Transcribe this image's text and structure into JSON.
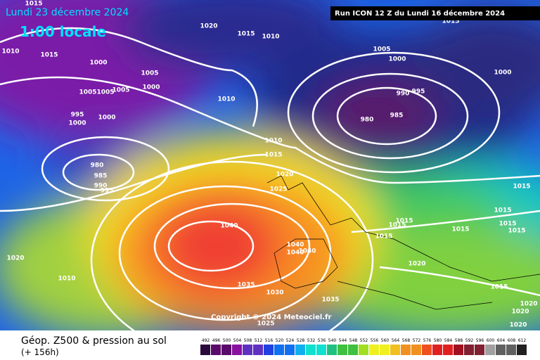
{
  "map": {
    "date": "Lundi 23 décembre 2024",
    "local_time": "1:00 locale",
    "run": "Run ICON 12 Z du Lundi 16 décembre 2024",
    "copyright": "Copyright © 2024 Meteociel.fr",
    "parameter": "Géop. Z500 & pression au sol",
    "lead_time": "(+ 156h)",
    "isobar_labels": [
      1015,
      1010,
      1015,
      1020,
      1015,
      1010,
      1005,
      1000,
      1015,
      1000,
      1000,
      1005,
      1005,
      1005,
      1005,
      1000,
      995,
      1000,
      1000,
      1010,
      990,
      995,
      985,
      980,
      1010,
      1015,
      1020,
      1025,
      980,
      985,
      990,
      995,
      1040,
      1040,
      1040,
      1040,
      1035,
      1030,
      1035,
      1025,
      1020,
      1010,
      1015,
      1015,
      1015,
      1015,
      1015,
      1015,
      1015,
      1020,
      1015,
      1020,
      1020,
      1020,
      1015
    ],
    "scale_values": [
      492,
      496,
      500,
      504,
      508,
      512,
      516,
      520,
      524,
      528,
      532,
      536,
      540,
      544,
      548,
      552,
      556,
      560,
      564,
      568,
      572,
      576,
      580,
      584,
      588,
      592,
      596,
      600,
      604,
      608,
      612
    ]
  }
}
